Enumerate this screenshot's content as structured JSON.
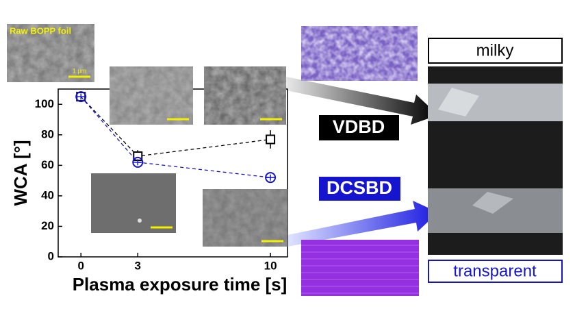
{
  "chart_data": {
    "type": "scatter",
    "ylabel": "WCA [°]",
    "xlabel": "Plasma exposure time [s]",
    "x": [
      0,
      3,
      10
    ],
    "series": [
      {
        "name": "VDBD",
        "color": "#000000",
        "marker": "square",
        "values": [
          105,
          66,
          77
        ],
        "errors": [
          2,
          4,
          6
        ]
      },
      {
        "name": "DCSBD",
        "color": "#1515d0",
        "marker": "circle",
        "values": [
          105,
          62,
          52
        ],
        "errors": [
          2,
          2,
          2
        ]
      }
    ],
    "xlim": [
      -1.2,
      10.9
    ],
    "ylim": [
      0,
      110
    ],
    "xticks": [
      0,
      3,
      10
    ],
    "yticks": [
      0,
      20,
      40,
      60,
      80,
      100
    ],
    "annotations": [
      "Raw BOPP foil",
      "1 µm",
      "milky",
      "transparent"
    ]
  }
}
